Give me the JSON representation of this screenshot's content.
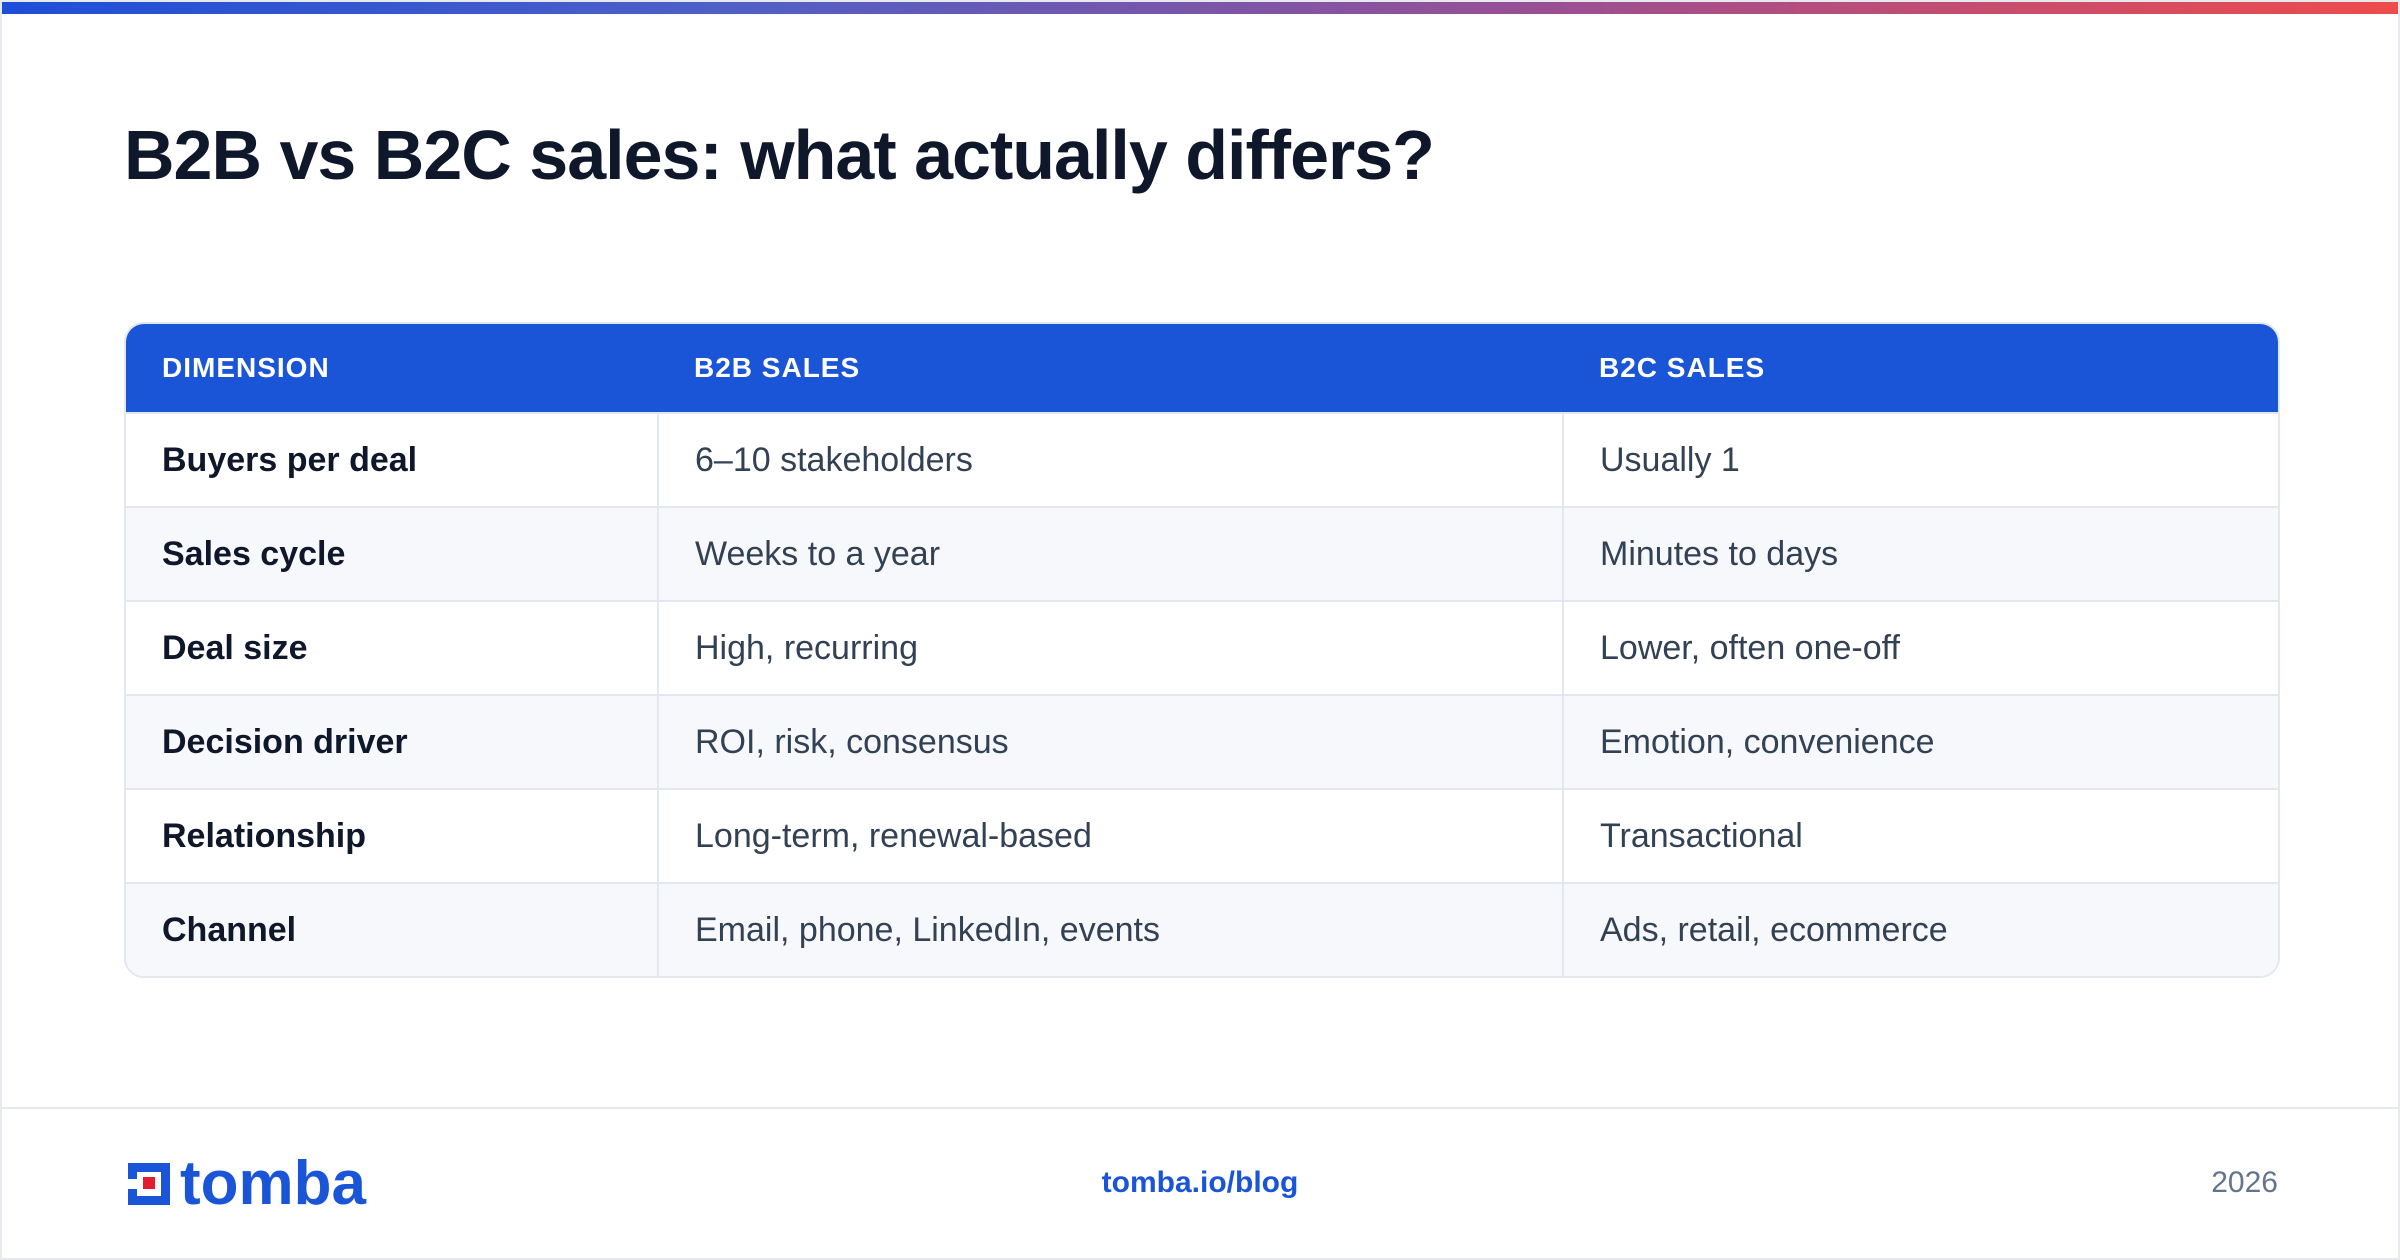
{
  "title": "B2B vs B2C sales: what actually differs?",
  "colors": {
    "accent": "#1a55d8",
    "header_bg": "#1a55d8",
    "row_alt": "#f6f8fb",
    "gradient": [
      "#1d4ed8",
      "#9b4f93",
      "#ef4b4b"
    ]
  },
  "table": {
    "headers": [
      "DIMENSION",
      "B2B SALES",
      "B2C SALES"
    ],
    "rows": [
      [
        "Buyers per deal",
        "6–10 stakeholders",
        "Usually 1"
      ],
      [
        "Sales cycle",
        "Weeks to a year",
        "Minutes to days"
      ],
      [
        "Deal size",
        "High, recurring",
        "Lower, often one-off"
      ],
      [
        "Decision driver",
        "ROI, risk, consensus",
        "Emotion, convenience"
      ],
      [
        "Relationship",
        "Long-term, renewal-based",
        "Transactional"
      ],
      [
        "Channel",
        "Email, phone, LinkedIn, events",
        "Ads, retail, ecommerce"
      ]
    ]
  },
  "footer": {
    "logo_text": "tomba",
    "logo_icon": "tomba-logo-icon",
    "link": "tomba.io/blog",
    "year": "2026"
  }
}
